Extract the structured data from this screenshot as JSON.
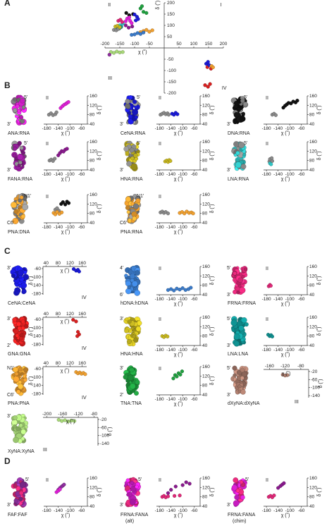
{
  "panels": [
    {
      "letter": "A",
      "y": 8
    },
    {
      "letter": "B",
      "y": 125
    },
    {
      "letter": "C",
      "y": 360
    },
    {
      "letter": "D",
      "y": 658
    }
  ],
  "colors": {
    "gray": "#8a8a8a",
    "magenta": "#e020d8",
    "purple": "#8a1a8e",
    "blue": "#1a1ad8",
    "black": "#111111",
    "yellow": "#c8b820",
    "cyan": "#30c8c8",
    "orange": "#f0a030",
    "dblue": "#3a7ac8",
    "pink": "#e02878",
    "red": "#d82020",
    "teal": "#109090",
    "green": "#20a040",
    "tan": "#b08070",
    "lgreen": "#a8d878",
    "lpurple": "#9030a0"
  },
  "panelA": {
    "xlabel": "χ (˚)",
    "ylabel": "δ (˚)",
    "xticks": [
      "-200",
      "-150",
      "-100",
      "-50",
      "50",
      "100",
      "150",
      "200"
    ],
    "yticks": [
      "200",
      "150",
      "100",
      "50",
      "-50",
      "-100",
      "-150",
      "-200"
    ],
    "quadrants": [
      "I",
      "II",
      "III",
      "IV"
    ],
    "clusters": [
      {
        "color": "black",
        "pts": [
          [
            -128,
            155
          ],
          [
            -118,
            145
          ],
          [
            -105,
            150
          ]
        ]
      },
      {
        "color": "magenta",
        "pts": [
          [
            -125,
            130
          ],
          [
            -115,
            120
          ],
          [
            -110,
            110
          ],
          [
            -118,
            135
          ],
          [
            -130,
            118
          ]
        ]
      },
      {
        "color": "purple",
        "pts": [
          [
            -130,
            100
          ],
          [
            -120,
            90
          ],
          [
            -108,
            95
          ]
        ]
      },
      {
        "color": "blue",
        "pts": [
          [
            -100,
            148
          ],
          [
            -92,
            138
          ],
          [
            -88,
            128
          ],
          [
            -96,
            122
          ]
        ]
      },
      {
        "color": "green",
        "pts": [
          [
            -80,
            175
          ],
          [
            -70,
            160
          ],
          [
            -60,
            155
          ],
          [
            -75,
            185
          ]
        ]
      },
      {
        "color": "cyan",
        "pts": [
          [
            -150,
            100
          ],
          [
            -145,
            95
          ],
          [
            -140,
            108
          ]
        ]
      },
      {
        "color": "pink",
        "pts": [
          [
            -155,
            120
          ],
          [
            -148,
            125
          ],
          [
            -142,
            115
          ]
        ]
      },
      {
        "color": "teal",
        "pts": [
          [
            -160,
            90
          ],
          [
            -152,
            86
          ],
          [
            -146,
            92
          ]
        ]
      },
      {
        "color": "orange",
        "pts": [
          [
            -70,
            75
          ],
          [
            -60,
            80
          ],
          [
            -50,
            72
          ],
          [
            -40,
            78
          ],
          [
            -80,
            70
          ]
        ]
      },
      {
        "color": "dblue",
        "pts": [
          [
            -100,
            60
          ],
          [
            -90,
            66
          ],
          [
            -80,
            62
          ],
          [
            -70,
            68
          ],
          [
            -110,
            58
          ]
        ]
      },
      {
        "color": "gray",
        "pts": [
          [
            -170,
            80
          ],
          [
            -162,
            78
          ],
          [
            -155,
            84
          ]
        ]
      },
      {
        "color": "yellow",
        "pts": [
          [
            -165,
            95
          ],
          [
            -158,
            98
          ],
          [
            -150,
            92
          ]
        ]
      },
      {
        "color": "lgreen",
        "pts": [
          [
            -180,
            -18
          ],
          [
            -170,
            -22
          ],
          [
            -160,
            -16
          ],
          [
            -150,
            -20
          ],
          [
            -140,
            -18
          ]
        ]
      },
      {
        "color": "lpurple",
        "pts": [
          [
            -185,
            -30
          ]
        ]
      },
      {
        "color": "red",
        "pts": [
          [
            138,
            -165
          ],
          [
            148,
            -172
          ],
          [
            155,
            -160
          ],
          [
            146,
            -85
          ],
          [
            158,
            -92
          ]
        ]
      },
      {
        "color": "blue",
        "pts": [
          [
            142,
            -70
          ],
          [
            152,
            -76
          ],
          [
            148,
            -62
          ]
        ]
      },
      {
        "color": "orange",
        "pts": [
          [
            160,
            -80
          ],
          [
            165,
            -86
          ]
        ]
      }
    ]
  },
  "panelB": [
    {
      "name": "ANA:RNA",
      "mol": "magenta",
      "ends": [
        "5'",
        "3'"
      ],
      "sets": [
        {
          "color": "gray",
          "xs": [
            -172,
            -165,
            -158,
            -150,
            -146
          ],
          "ys": [
            80,
            86,
            78,
            82,
            90
          ]
        },
        {
          "color": "magenta",
          "xs": [
            -132,
            -126,
            -120,
            -114,
            -110,
            -105
          ],
          "ys": [
            108,
            116,
            122,
            126,
            130,
            134
          ]
        }
      ]
    },
    {
      "name": "CeNA:RNA",
      "mol": "blue",
      "ends": [
        "5'",
        "3'"
      ],
      "sets": [
        {
          "color": "gray",
          "xs": [
            -176,
            -170,
            -164,
            -158,
            -152,
            -148
          ],
          "ys": [
            80,
            84,
            88,
            82,
            86,
            80
          ]
        },
        {
          "color": "blue",
          "xs": [
            -136,
            -130,
            -124,
            -118
          ],
          "ys": [
            84,
            80,
            88,
            82
          ]
        }
      ]
    },
    {
      "name": "DNA:RNA",
      "mol": "black",
      "ends": [
        "5'",
        "3'"
      ],
      "sets": [
        {
          "color": "gray",
          "xs": [
            -160,
            -154,
            -148
          ],
          "ys": [
            80,
            84,
            78
          ]
        },
        {
          "color": "black",
          "xs": [
            -122,
            -116,
            -110,
            -104,
            -96,
            -88,
            -80,
            -74
          ],
          "ys": [
            110,
            118,
            124,
            130,
            128,
            136,
            132,
            140
          ]
        }
      ]
    },
    {
      "name": "FANA:RNA",
      "mol": "purple",
      "ends": [
        "5'",
        "3'"
      ],
      "sets": [
        {
          "color": "gray",
          "xs": [
            -170,
            -164,
            -158,
            -152
          ],
          "ys": [
            80,
            84,
            78,
            88
          ]
        },
        {
          "color": "purple",
          "xs": [
            -140,
            -134,
            -128,
            -122,
            -116,
            -110
          ],
          "ys": [
            102,
            112,
            120,
            118,
            126,
            130
          ]
        }
      ]
    },
    {
      "name": "HNA:RNA",
      "mol": "yellow",
      "ends": [
        "5'",
        "3'"
      ],
      "sets": [
        {
          "color": "yellow",
          "xs": [
            -160,
            -155,
            -150,
            -146,
            -142
          ],
          "ys": [
            76,
            80,
            74,
            82,
            78
          ]
        }
      ]
    },
    {
      "name": "LNA:RNA",
      "mol": "cyan",
      "ends": [
        "5'",
        "3'"
      ],
      "sets": [
        {
          "color": "gray",
          "xs": [
            -170,
            -165,
            -160,
            -168,
            -162
          ],
          "ys": [
            76,
            82,
            78,
            86,
            90
          ]
        },
        {
          "color": "cyan",
          "xs": [
            -168,
            -164
          ],
          "ys": [
            68,
            64
          ]
        }
      ]
    },
    {
      "name": "PNA:DNA",
      "mol": "orange",
      "ends": [
        "N1'",
        "C6'"
      ],
      "sets": [
        {
          "color": "black",
          "xs": [
            -130,
            -124,
            -116,
            -110,
            -104
          ],
          "ys": [
            120,
            128,
            118,
            130,
            124
          ]
        },
        {
          "color": "gray",
          "xs": [
            -150,
            -144,
            -138
          ],
          "ys": [
            96,
            102,
            92
          ]
        },
        {
          "color": "orange",
          "xs": [
            -156,
            -150,
            -144,
            -136,
            -128
          ],
          "ys": [
            82,
            76,
            86,
            78,
            84
          ]
        }
      ]
    },
    {
      "name": "PNA:RNA",
      "mol": "orange",
      "ends": [
        "N1'",
        "C6'"
      ],
      "sets": [
        {
          "color": "gray",
          "xs": [
            -176,
            -170,
            -164,
            -158,
            -150
          ],
          "ys": [
            84,
            88,
            82,
            86,
            80
          ]
        },
        {
          "color": "orange",
          "xs": [
            -110,
            -102,
            -94,
            -86,
            -78,
            -70,
            -64
          ],
          "ys": [
            82,
            86,
            80,
            88,
            82,
            84,
            80
          ]
        }
      ]
    }
  ],
  "bAxes": {
    "xticks": [
      "-180",
      "-140",
      "-100",
      "-60"
    ],
    "yticks": [
      "160",
      "120",
      "80",
      "40"
    ],
    "xlabel": "χ (˚)",
    "ylabel": "δ (˚)",
    "quad": "II"
  },
  "panelC": [
    {
      "name": "CeNA:CeNA",
      "mol": "blue",
      "ends": [
        "3'"
      ],
      "type": "IV",
      "sets": [
        {
          "color": "blue",
          "xs": [
            132,
            140,
            146,
            150
          ],
          "ys": [
            -62,
            -70,
            -66,
            -74
          ]
        }
      ]
    },
    {
      "name": "hDNA:hDNA",
      "mol": "dblue",
      "ends": [
        "4'",
        "6'"
      ],
      "type": "II",
      "sets": [
        {
          "color": "dblue",
          "xs": [
            -150,
            -140,
            -130,
            -120,
            -110,
            -100,
            -90,
            -80,
            -72
          ],
          "ys": [
            60,
            64,
            58,
            66,
            62,
            68,
            60,
            64,
            70
          ]
        }
      ]
    },
    {
      "name": "FRNA:FRNA",
      "mol": "pink",
      "ends": [
        "5'",
        "3'"
      ],
      "type": "II",
      "sets": [
        {
          "color": "pink",
          "xs": [
            -172,
            -168,
            -165
          ],
          "ys": [
            76,
            82,
            78
          ]
        }
      ]
    },
    {
      "name": "GNA:GNA",
      "mol": "red",
      "ends": [
        "3'",
        "2'"
      ],
      "type": "IV",
      "sets": [
        {
          "color": "red",
          "xs": [
            130,
            140,
            146,
            150,
            144
          ],
          "ys": [
            -62,
            -70,
            -120,
            -132,
            -140
          ]
        }
      ]
    },
    {
      "name": "HNA:HNA",
      "mol": "yellow",
      "ends": [
        "3'"
      ],
      "type": "II",
      "sets": [
        {
          "color": "yellow",
          "xs": [
            -170,
            -164,
            -158,
            -152
          ],
          "ys": [
            80,
            76,
            82,
            78
          ]
        }
      ]
    },
    {
      "name": "LNA:LNA",
      "mol": "teal",
      "ends": [
        "5'",
        "3'"
      ],
      "type": "II",
      "sets": [
        {
          "color": "teal",
          "xs": [
            -174,
            -169,
            -164,
            -160
          ],
          "ys": [
            86,
            80,
            84,
            78
          ]
        }
      ]
    },
    {
      "name": "PNA:PNA",
      "mol": "orange",
      "ends": [
        "N1'",
        "C6'"
      ],
      "type": "IV",
      "sets": [
        {
          "color": "orange",
          "xs": [
            140,
            146,
            152,
            158,
            164,
            170
          ],
          "ys": [
            -76,
            -82,
            -78,
            -84,
            -80,
            -86
          ]
        }
      ]
    },
    {
      "name": "TNA:TNA",
      "mol": "green",
      "ends": [
        "3'",
        "2'"
      ],
      "type": "II",
      "sets": [
        {
          "color": "green",
          "xs": [
            -132,
            -126,
            -120,
            -114,
            -108,
            -102
          ],
          "ys": [
            110,
            124,
            118,
            132,
            126,
            140
          ]
        }
      ]
    },
    {
      "name": "dXyNA:dXyNA",
      "mol": "tan",
      "ends": [
        "5'",
        "3'"
      ],
      "type": "III",
      "sets": [
        {
          "color": "tan",
          "xs": [
            -126,
            -120,
            -114
          ],
          "ys": [
            -36,
            -40,
            -38
          ]
        }
      ]
    },
    {
      "name": "XyNA:XyNA",
      "mol": "lgreen",
      "ends": [
        "3'"
      ],
      "type": "III",
      "sets": [
        {
          "color": "lgreen",
          "xs": [
            -170,
            -162,
            -154,
            -146,
            -138,
            -130
          ],
          "ys": [
            -22,
            -28,
            -24,
            -30,
            -26,
            -28
          ]
        }
      ]
    }
  ],
  "cAxes": {
    "IV": {
      "xticks": [
        "40",
        "80",
        "120",
        "160"
      ],
      "yticks": [
        "-60",
        "-100",
        "-140",
        "-180"
      ],
      "quad": "IV"
    },
    "II": {
      "xticks": [
        "-180",
        "-140",
        "-100",
        "-60"
      ],
      "yticks": [
        "160",
        "120",
        "80",
        "40"
      ],
      "quad": "II"
    },
    "III": {
      "xticks": [
        "-200",
        "-160",
        "-120",
        "-80"
      ],
      "yticks": [
        "-20",
        "-60",
        "-100",
        "-140"
      ],
      "quad": "III"
    },
    "III2": {
      "xticks": [
        "-160",
        "-120",
        "-80"
      ],
      "yticks": [
        "-20",
        "-60",
        "-100",
        "-140"
      ],
      "quad": "III"
    },
    "xlabel": "χ (˚)",
    "ylabel": "δ (˚)"
  },
  "panelD": [
    {
      "name": "FAF:FAF",
      "mol": "lpurple",
      "ends": [
        "5'",
        "3'"
      ],
      "sets": [
        {
          "color": "lpurple",
          "xs": [
            -140,
            -134,
            -128,
            -124,
            -120
          ],
          "ys": [
            110,
            118,
            124,
            128,
            132
          ]
        },
        {
          "color": "magenta",
          "xs": [
            -146,
            -140,
            -134
          ],
          "ys": [
            100,
            106,
            112
          ]
        }
      ]
    },
    {
      "name": "FRNA:FANA",
      "sub": "(alt)",
      "mol": "magenta",
      "ends": [
        "5'",
        "3'"
      ],
      "sets": [
        {
          "color": "purple",
          "xs": [
            -150,
            -140,
            -124,
            -100,
            -88,
            -76
          ],
          "ys": [
            96,
            110,
            124,
            130,
            142,
            136
          ]
        },
        {
          "color": "pink",
          "xs": [
            -170,
            -164,
            -158,
            -150,
            -128,
            -110
          ],
          "ys": [
            80,
            84,
            78,
            82,
            84,
            86
          ]
        }
      ]
    },
    {
      "name": "FRNA:FANA",
      "sub": "(chim)",
      "mol": "magenta",
      "ends": [
        "5'",
        "3'"
      ],
      "sets": [
        {
          "color": "purple",
          "xs": [
            -140,
            -132,
            -126,
            -120
          ],
          "ys": [
            118,
            126,
            132,
            138
          ]
        },
        {
          "color": "pink",
          "xs": [
            -172,
            -166,
            -160,
            -154
          ],
          "ys": [
            80,
            84,
            78,
            86
          ]
        }
      ]
    }
  ]
}
